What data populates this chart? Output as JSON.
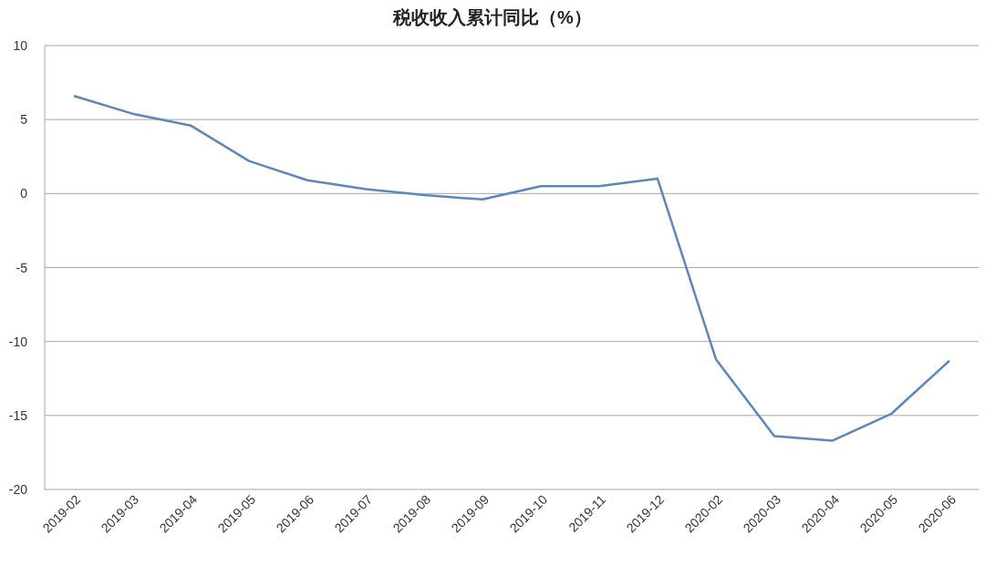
{
  "chart_data": {
    "type": "line",
    "title": "税收收入累计同比（%）",
    "categories": [
      "2019-02",
      "2019-03",
      "2019-04",
      "2019-05",
      "2019-06",
      "2019-07",
      "2019-08",
      "2019-09",
      "2019-10",
      "2019-11",
      "2019-12",
      "2020-02",
      "2020-03",
      "2020-04",
      "2020-05",
      "2020-06"
    ],
    "series": [
      {
        "color": "#5b87bd",
        "values": [
          6.6,
          5.4,
          4.6,
          2.2,
          0.9,
          0.3,
          -0.1,
          -0.4,
          0.5,
          0.5,
          1.0,
          -11.2,
          -16.4,
          -16.7,
          -14.9,
          -11.3
        ]
      }
    ],
    "ylim": [
      -20,
      10
    ],
    "yticks": [
      -20,
      -15,
      -10,
      -5,
      0,
      5,
      10
    ],
    "grid": "y"
  }
}
